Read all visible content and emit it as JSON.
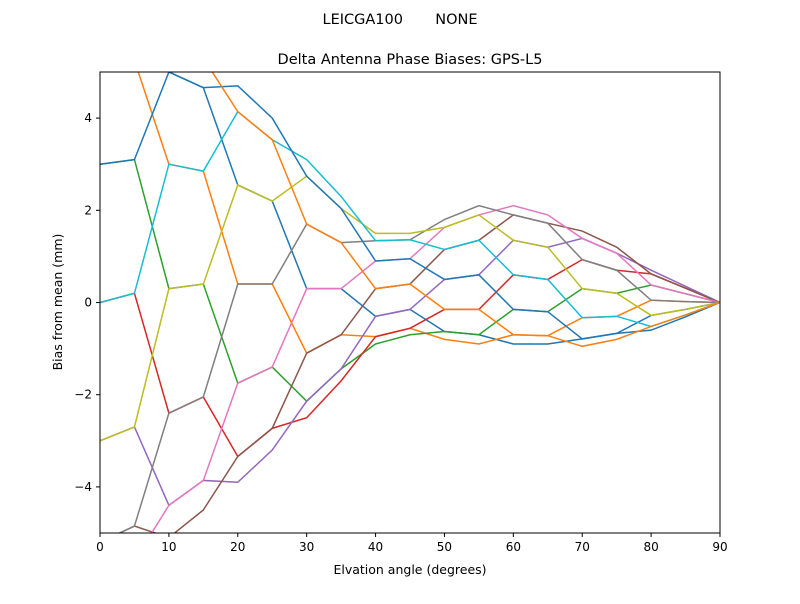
{
  "chart_data": {
    "type": "line",
    "suptitle": "LEICGA100       NONE",
    "title": "Delta Antenna Phase Biases: GPS-L5",
    "xlabel": "Elvation angle (degrees)",
    "ylabel": "Bias from mean (mm)",
    "xlim": [
      0,
      90
    ],
    "ylim": [
      -5,
      5
    ],
    "xticks": [
      0,
      10,
      20,
      30,
      40,
      50,
      60,
      70,
      80,
      90
    ],
    "yticks": [
      -4,
      -2,
      0,
      2,
      4
    ],
    "ytick_labels": [
      "−4",
      "−2",
      "0",
      "2",
      "4"
    ],
    "grid": false,
    "colors": [
      "#1f77b4",
      "#ff7f0e",
      "#2ca02c",
      "#d62728",
      "#9467bd",
      "#8c564b",
      "#e377c2",
      "#7f7f7f",
      "#bcbd22",
      "#17becf"
    ],
    "x": [
      0,
      5,
      10,
      15,
      20,
      25,
      30,
      35,
      40,
      45,
      50,
      55,
      60,
      65,
      70,
      75,
      80,
      85,
      90
    ],
    "series": [
      {
        "values": [
          6,
          6.0,
          5.0,
          4.66,
          2.55,
          2.2,
          0.3,
          0.3,
          -0.3,
          -0.15,
          -0.63,
          -0.7,
          -0.9,
          -0.9,
          -0.79,
          -0.67,
          -0.28,
          -0.15,
          0
        ]
      },
      {
        "values": [
          5.2,
          5.25,
          3.0,
          2.85,
          0.4,
          0.4,
          -1.1,
          -0.7,
          -0.74,
          -0.56,
          -0.8,
          -0.9,
          -0.7,
          -0.72,
          -0.33,
          -0.3,
          0.05,
          0.02,
          0
        ]
      },
      {
        "values": [
          3,
          3.1,
          0.3,
          0.4,
          -1.75,
          -1.4,
          -2.14,
          -1.44,
          -0.9,
          -0.7,
          -0.63,
          -0.7,
          -0.15,
          -0.2,
          0.3,
          0.2,
          0.38,
          0.19,
          0
        ]
      },
      {
        "values": [
          0,
          0.2,
          -2.4,
          -2.05,
          -3.34,
          -2.73,
          -2.5,
          -1.7,
          -0.74,
          -0.56,
          -0.15,
          -0.15,
          0.6,
          0.5,
          0.93,
          0.7,
          0.62,
          0.31,
          0
        ]
      },
      {
        "values": [
          -3,
          -2.7,
          -4.4,
          -3.86,
          -3.9,
          -3.2,
          -2.14,
          -1.44,
          -0.3,
          -0.15,
          0.5,
          0.6,
          1.35,
          1.2,
          1.39,
          1.07,
          0.7,
          0.35,
          0
        ]
      },
      {
        "values": [
          -5.2,
          -4.85,
          -5.1,
          -4.5,
          -3.34,
          -2.73,
          -1.1,
          -0.7,
          0.3,
          0.4,
          1.15,
          1.35,
          1.9,
          1.72,
          1.55,
          1.2,
          0.62,
          0.31,
          0
        ]
      },
      {
        "values": [
          -6,
          -5.6,
          -4.4,
          -3.86,
          -1.75,
          -1.4,
          0.3,
          0.3,
          0.9,
          0.95,
          1.63,
          1.9,
          2.1,
          1.9,
          1.39,
          1.07,
          0.38,
          0.19,
          0
        ]
      },
      {
        "values": [
          -5.2,
          -4.85,
          -2.4,
          -2.05,
          0.4,
          0.4,
          1.7,
          1.3,
          1.34,
          1.36,
          1.8,
          2.1,
          1.9,
          1.72,
          0.93,
          0.7,
          0.05,
          0.02,
          0
        ]
      },
      {
        "values": [
          -3,
          -2.7,
          0.3,
          0.4,
          2.55,
          2.2,
          2.74,
          2.04,
          1.5,
          1.5,
          1.63,
          1.9,
          1.35,
          1.2,
          0.3,
          0.2,
          -0.28,
          -0.15,
          0
        ]
      },
      {
        "values": [
          0,
          0.2,
          3.0,
          2.85,
          4.14,
          3.53,
          3.1,
          2.3,
          1.34,
          1.36,
          1.15,
          1.35,
          0.6,
          0.5,
          -0.33,
          -0.3,
          -0.52,
          -0.27,
          0
        ]
      },
      {
        "values": [
          3,
          3.1,
          5.0,
          4.66,
          4.7,
          4.0,
          2.74,
          2.04,
          0.9,
          0.95,
          0.5,
          0.6,
          -0.15,
          -0.2,
          -0.79,
          -0.67,
          -0.6,
          -0.31,
          0
        ]
      },
      {
        "values": [
          5.2,
          5.25,
          5.7,
          5.3,
          4.14,
          3.53,
          1.7,
          1.3,
          0.3,
          0.4,
          -0.15,
          -0.15,
          -0.7,
          -0.72,
          -0.95,
          -0.8,
          -0.52,
          -0.27,
          0
        ]
      }
    ]
  }
}
